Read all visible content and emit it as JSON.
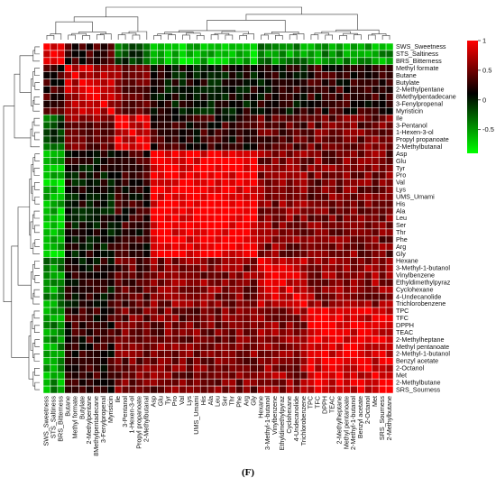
{
  "figure": {
    "panel_label": "(F)"
  },
  "chart_data": {
    "type": "heatmap",
    "row_labels": [
      "SWS_Sweetness",
      "STS_Saltiness",
      "BRS_Bitterness",
      "Methyl formate",
      "Butane",
      "Butylate",
      "2-Methylpentane",
      "8Methylpentadecane",
      "3-Fenylpropenal",
      "Myristicin",
      "Ile",
      "3-Pentanol",
      "1-Hexen-3-ol",
      "Propyl propanoate",
      "2-Methylbutanal",
      "Asp",
      "Glu",
      "Tyr",
      "Pro",
      "Val",
      "Lys",
      "UMS_Umami",
      "His",
      "Ala",
      "Leu",
      "Ser",
      "Thr",
      "Phe",
      "Arg",
      "Gly",
      "Hexane",
      "3-Methyl-1-butanol",
      "Vinylbenzene",
      "Ethyldimethylpyraz",
      "Cyclohexane",
      "4-Undecanolide",
      "Trichlorobenzene",
      "TPC",
      "TFC",
      "DPPH",
      "TEAC",
      "2-Methylheptane",
      "Methyl pentanoate",
      "2-Methyl-1-butanol",
      "Benzyl acetate",
      "2-Octanol",
      "Met",
      "2-Methylbutane",
      "SRS_Sourness"
    ],
    "col_labels": [
      "SWS_Sweetness",
      "STS_Saltiness",
      "BRS_Bitterness",
      "Butane",
      "Methyl formate",
      "Butylate",
      "2-Methylpentane",
      "8Methylpentadecane",
      "3-Fenylpropenal",
      "Myristicin",
      "Ile",
      "3-Pentanol",
      "1-Hexen-3-ol",
      "Propyl propanoate",
      "2-Methylbutanal",
      "Asp",
      "Glu",
      "Tyr",
      "Pro",
      "Val",
      "Lys",
      "UMS_Umami",
      "His",
      "Ala",
      "Leu",
      "Ser",
      "Thr",
      "Phe",
      "Arg",
      "Gly",
      "Hexane",
      "3-Methyl-1-butanol",
      "Vinylbenzene",
      "Ethyldimethylpyraz",
      "Cyclohexane",
      "4-Undecanolide",
      "Trichlorobenzene",
      "TPC",
      "TFC",
      "DPPH",
      "TEAC",
      "2-Methylheptane",
      "Methyl pentanoate",
      "2-Methyl-1-butanol",
      "Benzyl acetate",
      "2-Octanol",
      "Met",
      "SRS_Sourness",
      "2-Methylbutane"
    ],
    "colorbar": {
      "ticks": [
        1,
        0.5,
        0,
        -0.5
      ],
      "range": [
        -0.9,
        1
      ],
      "low_color": "#00ff00",
      "mid_color": "#000000",
      "high_color": "#ff0000"
    },
    "cluster_order": [
      0,
      1,
      2,
      4,
      3,
      5,
      6,
      7,
      8,
      9,
      10,
      11,
      12,
      13,
      14,
      15,
      16,
      17,
      18,
      19,
      20,
      21,
      22,
      23,
      24,
      25,
      26,
      27,
      28,
      29,
      30,
      31,
      32,
      33,
      34,
      35,
      36,
      37,
      38,
      39,
      40,
      41,
      42,
      43,
      44,
      45,
      46,
      48,
      47
    ],
    "groups": [
      0,
      0,
      0,
      1,
      1,
      1,
      1,
      1,
      1,
      1,
      2,
      2,
      2,
      2,
      2,
      3,
      3,
      3,
      3,
      3,
      3,
      3,
      3,
      3,
      3,
      3,
      3,
      3,
      3,
      3,
      4,
      4,
      4,
      4,
      4,
      4,
      4,
      5,
      5,
      5,
      5,
      5,
      5,
      5,
      5,
      5,
      5,
      5,
      5
    ],
    "group_matrix": [
      [
        0.95,
        0.2,
        -0.3,
        -0.75,
        -0.55,
        -0.6
      ],
      [
        0.2,
        0.75,
        0.45,
        0.0,
        0.05,
        0.15
      ],
      [
        -0.3,
        0.45,
        0.85,
        0.15,
        0.35,
        0.4
      ],
      [
        -0.75,
        0.0,
        0.15,
        0.95,
        0.5,
        0.45
      ],
      [
        -0.55,
        0.05,
        0.35,
        0.5,
        0.75,
        0.55
      ],
      [
        -0.6,
        0.15,
        0.4,
        0.45,
        0.55,
        0.85
      ]
    ]
  }
}
